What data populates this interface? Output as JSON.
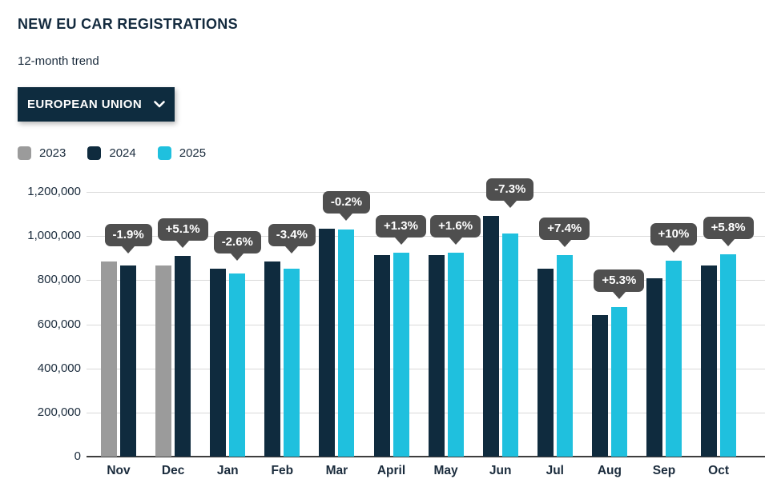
{
  "header": {
    "title": "NEW EU CAR REGISTRATIONS",
    "subtitle": "12-month trend",
    "region_selector": {
      "label": "EUROPEAN UNION",
      "icon": "chevron-down-icon"
    }
  },
  "legend": {
    "items": [
      {
        "label": "2023",
        "color": "#9b9b9b"
      },
      {
        "label": "2024",
        "color": "#0f2b3e"
      },
      {
        "label": "2025",
        "color": "#1fc0de"
      }
    ]
  },
  "chart_data": {
    "type": "bar",
    "title": "NEW EU CAR REGISTRATIONS",
    "subtitle": "12-month trend",
    "categories": [
      "Nov",
      "Dec",
      "Jan",
      "Feb",
      "Mar",
      "April",
      "May",
      "Jun",
      "Jul",
      "Aug",
      "Sep",
      "Oct"
    ],
    "series": [
      {
        "name": "2023",
        "color": "#9b9b9b",
        "values": [
          885000,
          866000,
          null,
          null,
          null,
          null,
          null,
          null,
          null,
          null,
          null,
          null
        ]
      },
      {
        "name": "2024",
        "color": "#0f2b3e",
        "values": [
          868000,
          910000,
          851000,
          883000,
          1032000,
          914000,
          912000,
          1090000,
          852000,
          643000,
          808000,
          866000
        ]
      },
      {
        "name": "2025",
        "color": "#1fc0de",
        "values": [
          null,
          null,
          829000,
          853000,
          1030000,
          926000,
          926000,
          1010000,
          915000,
          678000,
          889000,
          916000
        ]
      }
    ],
    "change_labels": [
      "-1.9%",
      "+5.1%",
      "-2.6%",
      "-3.4%",
      "-0.2%",
      "+1.3%",
      "+1.6%",
      "-7.3%",
      "+7.4%",
      "+5.3%",
      "+10%",
      "+5.8%"
    ],
    "ylim": [
      0,
      1200000
    ],
    "yticks": [
      "1,200,000",
      "1,000,000",
      "800,000",
      "600,000",
      "400,000",
      "200,000",
      "0"
    ],
    "grid": true,
    "legend_position": "top-left",
    "tooltip_color": "#4f4f4f"
  }
}
